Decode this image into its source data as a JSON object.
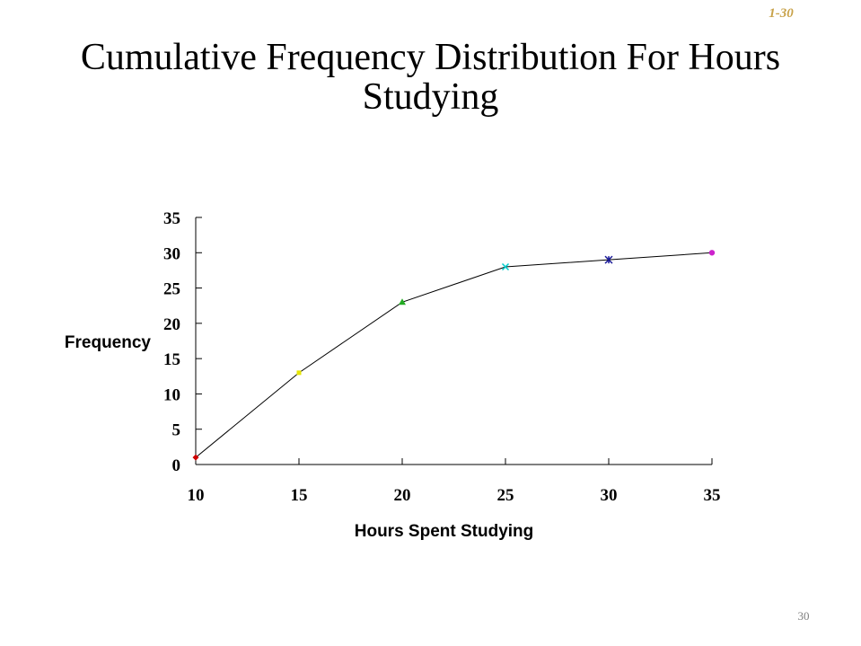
{
  "slide": {
    "label": "1-30",
    "title_line1": "Cumulative Frequency Distribution For Hours",
    "title_line2": "Studying",
    "page_number": "30"
  },
  "colors": {
    "label": "#c8a24a",
    "line": "#000000",
    "axis": "#000000",
    "page_number": "#808080"
  },
  "chart_data": {
    "type": "line",
    "title": "",
    "xlabel": "Hours Spent Studying",
    "ylabel": "Frequency",
    "x": [
      10,
      15,
      20,
      25,
      30,
      35
    ],
    "xlim": [
      10,
      35
    ],
    "ylim": [
      0,
      35
    ],
    "xticks": [
      10,
      15,
      20,
      25,
      30,
      35
    ],
    "yticks": [
      0,
      5,
      10,
      15,
      20,
      25,
      30,
      35
    ],
    "grid": false,
    "legend": "none",
    "series": [
      {
        "values": [
          1,
          13,
          23,
          28,
          29,
          30
        ],
        "line_color": "#000000",
        "markers": [
          {
            "shape": "diamond",
            "color": "#cc0000"
          },
          {
            "shape": "square",
            "color": "#e6e600"
          },
          {
            "shape": "triangle",
            "color": "#22aa22"
          },
          {
            "shape": "x",
            "color": "#00cccc"
          },
          {
            "shape": "star",
            "color": "#1a1a99"
          },
          {
            "shape": "circle",
            "color": "#cc22cc"
          }
        ]
      }
    ]
  }
}
